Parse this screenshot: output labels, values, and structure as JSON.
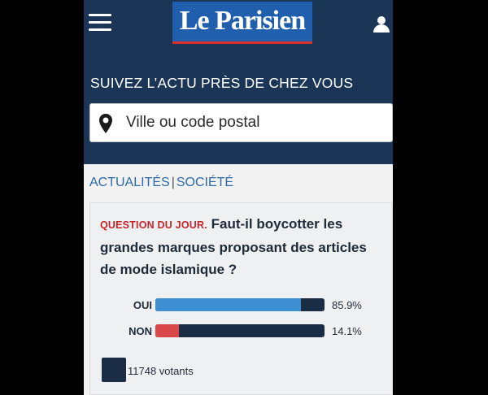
{
  "header": {
    "logo_text": "Le Parisien",
    "menu_icon": "hamburger-icon",
    "user_icon": "user-icon"
  },
  "local_news": {
    "tagline": "SUIVEZ L’ACTU PRÈS DE CHEZ VOUS",
    "search": {
      "placeholder": "Ville ou code postal",
      "value": "",
      "icon": "location-pin-icon"
    }
  },
  "breadcrumb": {
    "items": [
      "ACTUALITÉS",
      "SOCIÉTÉ"
    ],
    "separator": "|"
  },
  "poll": {
    "label": "QUESTION DU JOUR.",
    "question": "Faut-il boycotter les grandes marques proposant des articles de mode islamique ?",
    "options": [
      {
        "label": "OUI",
        "percent_text": "85.9%",
        "percent": 85.9,
        "color": "#3d8fd1"
      },
      {
        "label": "NON",
        "percent_text": "14.1%",
        "percent": 14.1,
        "color": "#d9474a"
      }
    ],
    "voters_text": "11748 votants"
  },
  "colors": {
    "header_bg": "#1b3556",
    "logo_bg": "#1f5fae",
    "logo_underline": "#d5302b",
    "accent_blue": "#2e6aa8",
    "question_label_red": "#c9262c",
    "bar_track": "#1a2d44"
  }
}
